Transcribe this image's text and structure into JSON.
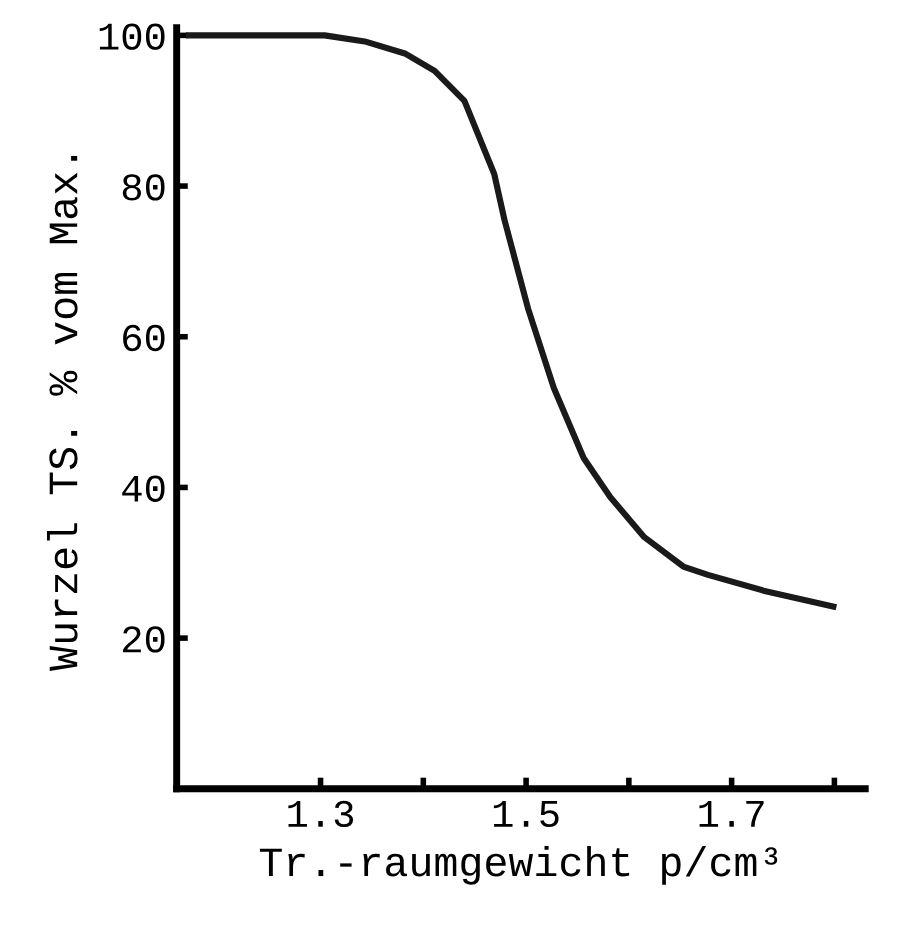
{
  "chart_data": {
    "type": "line",
    "xlabel": "Tr.-raumgewicht p/cm³",
    "ylabel": "Wurzel TS. % vom Max.",
    "x": [
      1.172,
      1.304,
      1.343,
      1.382,
      1.411,
      1.44,
      1.469,
      1.479,
      1.502,
      1.527,
      1.556,
      1.582,
      1.615,
      1.653,
      1.677,
      1.731,
      1.799
    ],
    "series": [
      {
        "color": "#1a1a1a",
        "values": [
          100,
          100,
          99.2,
          97.6,
          95.3,
          91.3,
          81.6,
          75.5,
          63.7,
          53.2,
          43.9,
          38.7,
          33.4,
          29.5,
          28.4,
          26.3,
          24.2
        ]
      }
    ],
    "xlim": [
      1.16,
      1.83
    ],
    "ylim": [
      0,
      101
    ],
    "xticks": [
      1.3,
      {
        "value": 1.4,
        "label": null
      },
      1.5,
      {
        "value": 1.6,
        "label": null
      },
      1.7,
      {
        "value": 1.8,
        "label": null
      }
    ],
    "yticks": [
      20,
      40,
      60,
      80,
      100
    ],
    "grid": false,
    "legend": false,
    "marker": "none",
    "line_style": "solid"
  }
}
